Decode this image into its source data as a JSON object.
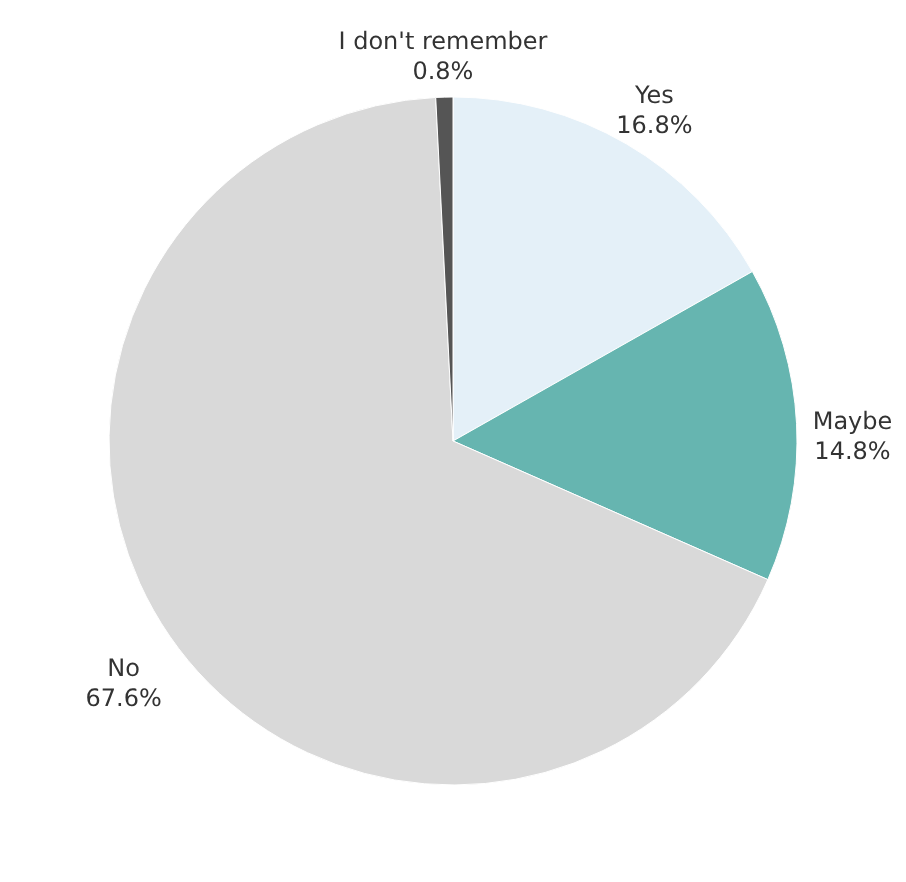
{
  "chart_data": {
    "type": "pie",
    "categories": [
      "Yes",
      "Maybe",
      "No",
      "I don't remember"
    ],
    "values": [
      16.8,
      14.8,
      67.6,
      0.8
    ],
    "colors": [
      "#e4f0f8",
      "#66b5b0",
      "#d9d9d9",
      "#555555"
    ],
    "value_labels": [
      "16.8%",
      "14.8%",
      "67.6%",
      "0.8%"
    ]
  }
}
